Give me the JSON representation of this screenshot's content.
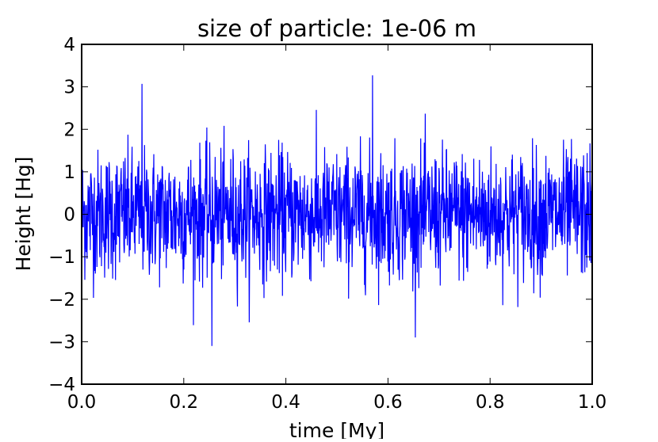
{
  "chart_data": {
    "type": "line",
    "title": "size of particle: 1e-06 m",
    "xlabel": "time [My]",
    "ylabel": "Height [Hg]",
    "xlim": [
      0.0,
      1.0
    ],
    "ylim": [
      -4,
      4
    ],
    "xticks": [
      "0.0",
      "0.2",
      "0.4",
      "0.6",
      "0.8",
      "1.0"
    ],
    "yticks": [
      "4",
      "3",
      "2",
      "1",
      "0",
      "−1",
      "−2",
      "−3",
      "−4"
    ],
    "grid": false,
    "series": [
      {
        "name": "height",
        "color": "#0000ff",
        "description_of_values": "dense zero-mean random fluctuation",
        "approx_std": 0.75,
        "n_points": 1600,
        "peaks": [
          {
            "x": 0.57,
            "y": 3.27
          },
          {
            "x": 0.255,
            "y": -3.1
          },
          {
            "x": 0.118,
            "y": 3.07
          }
        ]
      }
    ]
  }
}
